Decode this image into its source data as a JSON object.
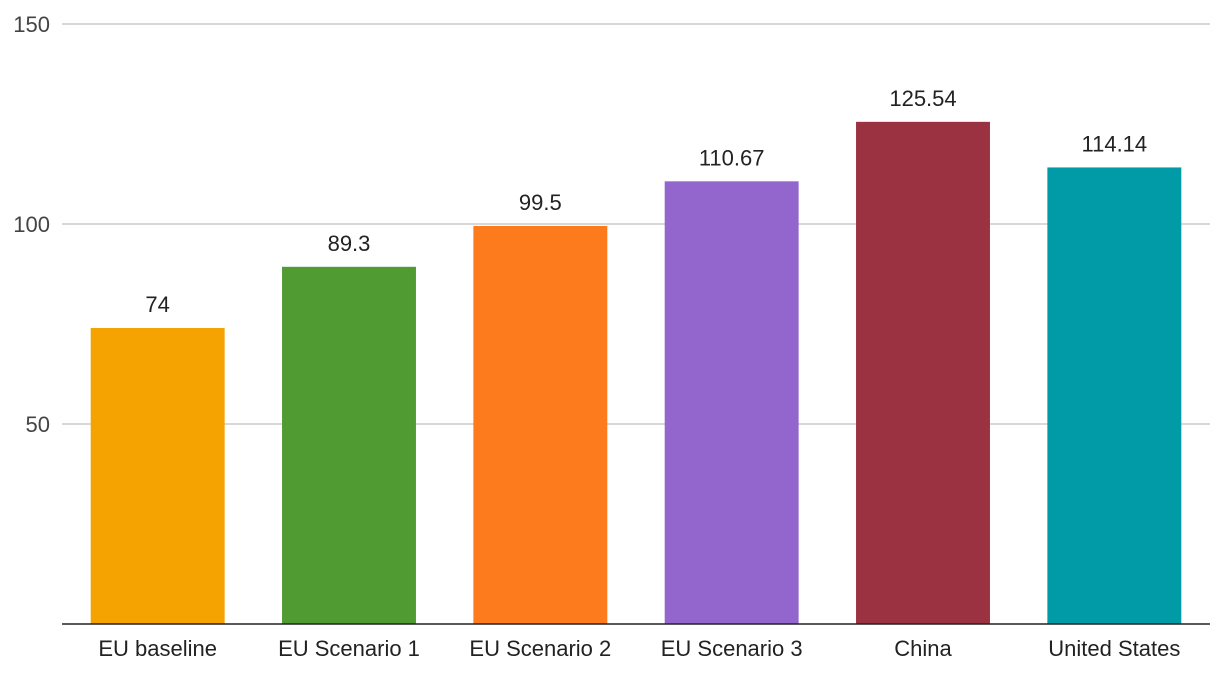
{
  "chart_data": {
    "type": "bar",
    "title": "",
    "xlabel": "",
    "ylabel": "",
    "categories": [
      "EU baseline",
      "EU Scenario 1",
      "EU Scenario 2",
      "EU Scenario 3",
      "China",
      "United States"
    ],
    "values": [
      74,
      89.3,
      99.5,
      110.67,
      125.54,
      114.14
    ],
    "data_labels": [
      "74",
      "89.3",
      "99.5",
      "110.67",
      "125.54",
      "114.14"
    ],
    "colors": [
      "#f5a300",
      "#519c32",
      "#fd7a1d",
      "#9266cc",
      "#9b3241",
      "#009ba6"
    ],
    "ylim": [
      0,
      150
    ],
    "yticks": [
      50,
      100,
      150
    ],
    "ytick_labels": [
      "50",
      "100",
      "150"
    ],
    "grid": true,
    "legend": "none"
  }
}
